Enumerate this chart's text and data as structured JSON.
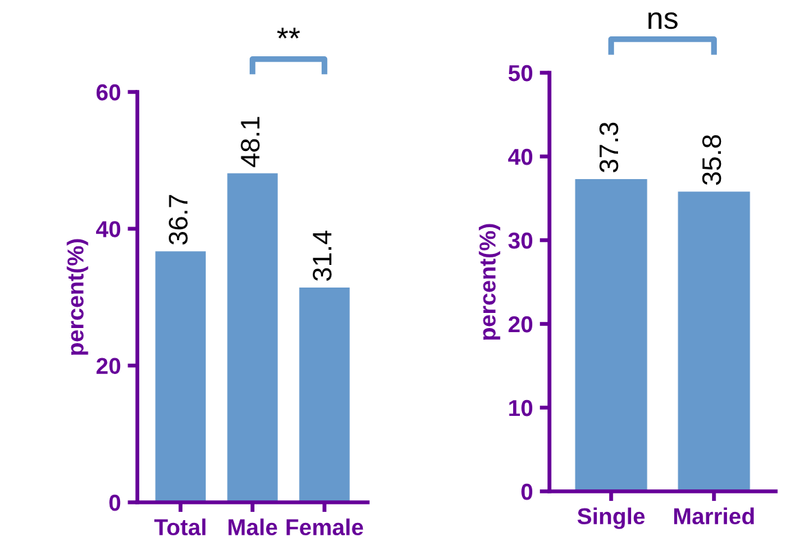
{
  "chart_data": [
    {
      "type": "bar",
      "categories": [
        "Total",
        "Male",
        "Female"
      ],
      "values": [
        36.7,
        48.1,
        31.4
      ],
      "color": "#6699cc",
      "ylabel": "percent(%)",
      "ylim": [
        0,
        60
      ],
      "yticks": [
        0,
        20,
        40,
        60
      ],
      "data_labels": true,
      "grid": false,
      "legend": false,
      "annotations": [
        "**"
      ]
    },
    {
      "type": "bar",
      "categories": [
        "Single",
        "Married"
      ],
      "values": [
        37.3,
        35.8
      ],
      "color": "#6699cc",
      "ylabel": "percent(%)",
      "ylim": [
        0,
        50
      ],
      "yticks": [
        0,
        10,
        20,
        30,
        40,
        50
      ],
      "data_labels": true,
      "grid": false,
      "legend": false,
      "annotations": [
        "ns"
      ]
    }
  ]
}
